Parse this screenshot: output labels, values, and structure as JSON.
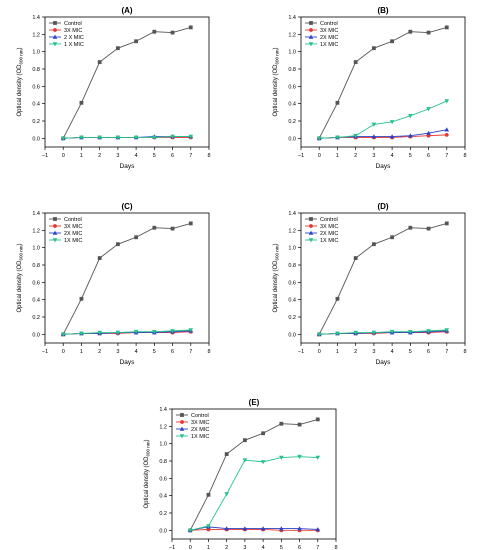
{
  "colors": {
    "Control": "#555555",
    "3X MIC": "#e8352e",
    "3X  MIC": "#e8352e",
    "2X MIC": "#2a44c8",
    "2 X MIC": "#2a44c8",
    "1X MIC": "#27c28a",
    "1 X MIC": "#27c28a"
  },
  "chart_data": [
    {
      "panel": "(A)",
      "type": "line",
      "xlabel": "Days",
      "ylabel": "Optical density (OD600 nm)",
      "xlim": [
        -1,
        8
      ],
      "ylim": [
        -0.1,
        1.4
      ],
      "xticks": [
        -1,
        0,
        1,
        2,
        3,
        4,
        5,
        6,
        7,
        8
      ],
      "yticks": [
        0.0,
        0.2,
        0.4,
        0.6,
        0.8,
        1.0,
        1.2,
        1.4
      ],
      "x": [
        0,
        1,
        2,
        3,
        4,
        5,
        6,
        7
      ],
      "legend_position": "top-left",
      "grid": false,
      "series": [
        {
          "name": "Control",
          "marker": "square",
          "values": [
            0.0,
            0.41,
            0.88,
            1.04,
            1.12,
            1.23,
            1.22,
            1.28
          ]
        },
        {
          "name": "3X MIC",
          "marker": "circle",
          "values": [
            0.0,
            0.01,
            0.01,
            0.01,
            0.01,
            0.01,
            0.01,
            0.01
          ]
        },
        {
          "name": "2 X MIC",
          "marker": "triangle-up",
          "values": [
            0.0,
            0.01,
            0.01,
            0.01,
            0.01,
            0.02,
            0.02,
            0.02
          ]
        },
        {
          "name": "1 X MIC",
          "marker": "triangle-down",
          "values": [
            0.0,
            0.01,
            0.01,
            0.01,
            0.01,
            0.01,
            0.02,
            0.02
          ]
        }
      ]
    },
    {
      "panel": "(B)",
      "type": "line",
      "xlabel": "Days",
      "ylabel": "Optical density (OD600 nm)",
      "xlim": [
        -1,
        8
      ],
      "ylim": [
        -0.1,
        1.4
      ],
      "xticks": [
        -1,
        0,
        1,
        2,
        3,
        4,
        5,
        6,
        7,
        8
      ],
      "yticks": [
        0.0,
        0.2,
        0.4,
        0.6,
        0.8,
        1.0,
        1.2,
        1.4
      ],
      "x": [
        0,
        1,
        2,
        3,
        4,
        5,
        6,
        7
      ],
      "legend_position": "top-left",
      "grid": false,
      "series": [
        {
          "name": "Control",
          "marker": "square",
          "values": [
            0.0,
            0.41,
            0.88,
            1.04,
            1.12,
            1.23,
            1.22,
            1.28
          ]
        },
        {
          "name": "3X  MIC",
          "marker": "circle",
          "values": [
            0.0,
            0.01,
            0.01,
            0.01,
            0.01,
            0.02,
            0.03,
            0.04
          ]
        },
        {
          "name": "2X MIC",
          "marker": "triangle-up",
          "values": [
            0.0,
            0.01,
            0.02,
            0.02,
            0.02,
            0.03,
            0.06,
            0.1
          ]
        },
        {
          "name": "1X MIC",
          "marker": "triangle-down",
          "values": [
            0.0,
            0.01,
            0.03,
            0.16,
            0.19,
            0.26,
            0.34,
            0.43
          ]
        }
      ]
    },
    {
      "panel": "(C)",
      "type": "line",
      "xlabel": "Days",
      "ylabel": "Optical density (OD600 nm)",
      "xlim": [
        -1,
        8
      ],
      "ylim": [
        -0.1,
        1.4
      ],
      "xticks": [
        -1,
        0,
        1,
        2,
        3,
        4,
        5,
        6,
        7,
        8
      ],
      "yticks": [
        0.0,
        0.2,
        0.4,
        0.6,
        0.8,
        1.0,
        1.2,
        1.4
      ],
      "x": [
        0,
        1,
        2,
        3,
        4,
        5,
        6,
        7
      ],
      "legend_position": "top-left",
      "grid": false,
      "series": [
        {
          "name": "Control",
          "marker": "square",
          "values": [
            0.0,
            0.41,
            0.88,
            1.04,
            1.12,
            1.23,
            1.22,
            1.28
          ]
        },
        {
          "name": "3X  MIC",
          "marker": "circle",
          "values": [
            0.0,
            0.01,
            0.01,
            0.01,
            0.02,
            0.02,
            0.02,
            0.03
          ]
        },
        {
          "name": "2X MIC",
          "marker": "triangle-up",
          "values": [
            0.0,
            0.01,
            0.01,
            0.02,
            0.02,
            0.02,
            0.03,
            0.04
          ]
        },
        {
          "name": "1X MIC",
          "marker": "triangle-down",
          "values": [
            0.0,
            0.01,
            0.02,
            0.02,
            0.03,
            0.03,
            0.04,
            0.05
          ]
        }
      ]
    },
    {
      "panel": "(D)",
      "type": "line",
      "xlabel": "Days",
      "ylabel": "Optical density (OD600 nm)",
      "xlim": [
        -1,
        8
      ],
      "ylim": [
        -0.1,
        1.4
      ],
      "xticks": [
        -1,
        0,
        1,
        2,
        3,
        4,
        5,
        6,
        7,
        8
      ],
      "yticks": [
        0.0,
        0.2,
        0.4,
        0.6,
        0.8,
        1.0,
        1.2,
        1.4
      ],
      "x": [
        0,
        1,
        2,
        3,
        4,
        5,
        6,
        7
      ],
      "legend_position": "top-left",
      "grid": false,
      "series": [
        {
          "name": "Control",
          "marker": "square",
          "values": [
            0.0,
            0.41,
            0.88,
            1.04,
            1.12,
            1.23,
            1.22,
            1.28
          ]
        },
        {
          "name": "3X  MIC",
          "marker": "circle",
          "values": [
            0.0,
            0.01,
            0.01,
            0.01,
            0.02,
            0.02,
            0.02,
            0.03
          ]
        },
        {
          "name": "2X MIC",
          "marker": "triangle-up",
          "values": [
            0.0,
            0.01,
            0.01,
            0.02,
            0.02,
            0.02,
            0.03,
            0.04
          ]
        },
        {
          "name": "1X MIC",
          "marker": "triangle-down",
          "values": [
            0.0,
            0.01,
            0.02,
            0.02,
            0.03,
            0.03,
            0.04,
            0.05
          ]
        }
      ]
    },
    {
      "panel": "(E)",
      "type": "line",
      "xlabel": "Days",
      "ylabel": "Optical density (OD600 nm)",
      "xlim": [
        -1,
        8
      ],
      "ylim": [
        -0.1,
        1.4
      ],
      "xticks": [
        -1,
        0,
        1,
        2,
        3,
        4,
        5,
        6,
        7,
        8
      ],
      "yticks": [
        0.0,
        0.2,
        0.4,
        0.6,
        0.8,
        1.0,
        1.2,
        1.4
      ],
      "x": [
        0,
        1,
        2,
        3,
        4,
        5,
        6,
        7
      ],
      "legend_position": "top-left",
      "grid": false,
      "series": [
        {
          "name": "Control",
          "marker": "square",
          "values": [
            0.0,
            0.41,
            0.88,
            1.04,
            1.12,
            1.23,
            1.22,
            1.28
          ]
        },
        {
          "name": "3X MIC",
          "marker": "circle",
          "values": [
            0.0,
            0.01,
            0.01,
            0.01,
            0.01,
            0.0,
            0.0,
            0.0
          ]
        },
        {
          "name": "2X MIC",
          "marker": "triangle-up",
          "values": [
            0.0,
            0.04,
            0.02,
            0.02,
            0.02,
            0.02,
            0.02,
            0.01
          ]
        },
        {
          "name": "1X MIC",
          "marker": "triangle-down",
          "values": [
            0.0,
            0.05,
            0.42,
            0.81,
            0.79,
            0.84,
            0.85,
            0.84
          ]
        }
      ]
    }
  ]
}
